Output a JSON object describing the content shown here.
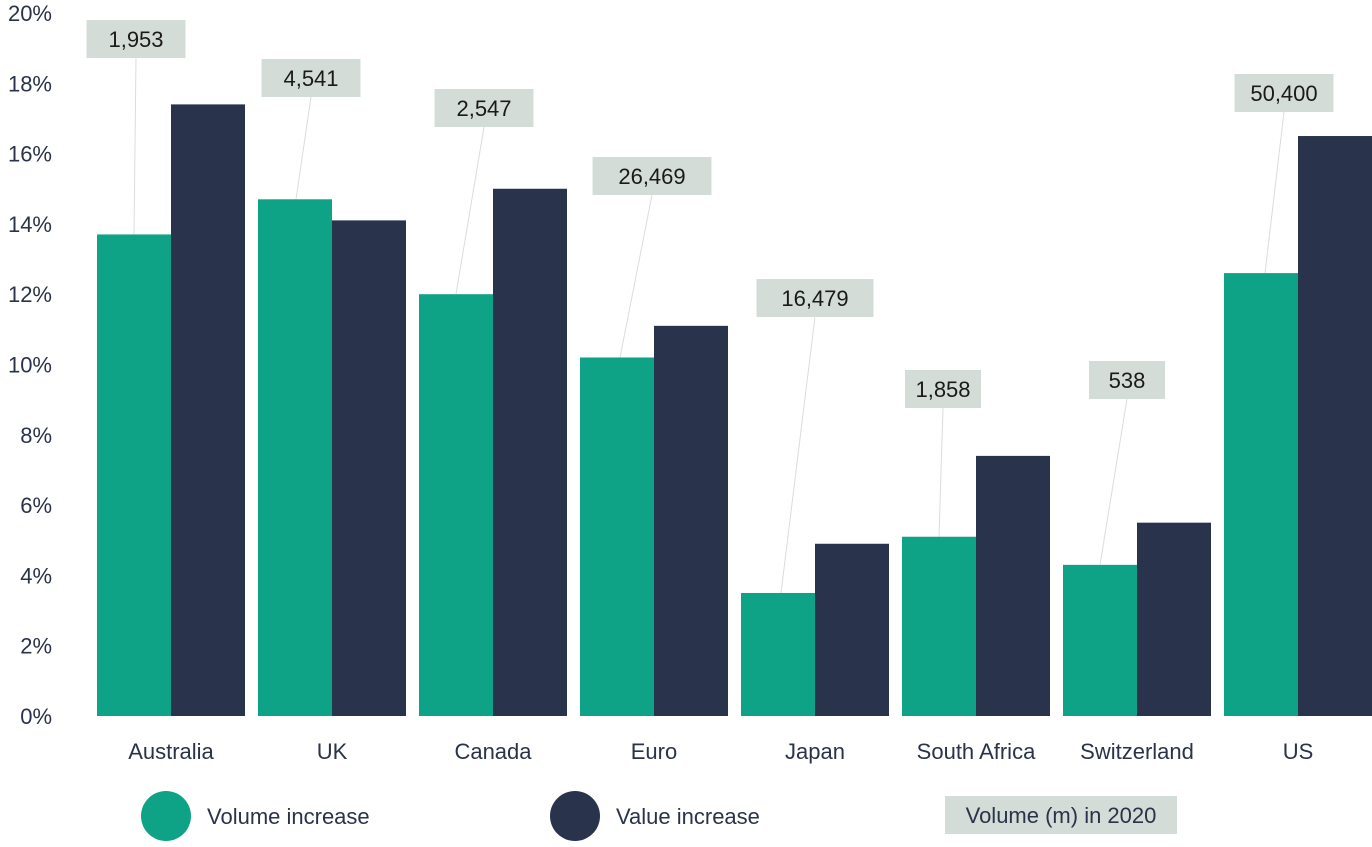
{
  "chart_data": {
    "type": "bar",
    "categories": [
      "Australia",
      "UK",
      "Canada",
      "Euro",
      "Japan",
      "South Africa",
      "Switzerland",
      "US"
    ],
    "series": [
      {
        "name": "Volume increase",
        "color": "#0ea386",
        "values": [
          13.7,
          14.7,
          12.0,
          10.2,
          3.5,
          5.1,
          4.3,
          12.6
        ]
      },
      {
        "name": "Value increase",
        "color": "#29344c",
        "values": [
          17.4,
          14.1,
          15.0,
          11.1,
          4.9,
          7.4,
          5.5,
          16.5
        ]
      }
    ],
    "annotations": {
      "title": "Volume (m) in 2020",
      "labels": [
        "1,953",
        "4,541",
        "2,547",
        "26,469",
        "16,479",
        "1,858",
        "538",
        "50,400"
      ],
      "label_bg": "#d4dcd8"
    },
    "yticks": [
      "0%",
      "2%",
      "4%",
      "6%",
      "8%",
      "10%",
      "12%",
      "14%",
      "16%",
      "18%",
      "20%"
    ],
    "ylim": [
      0,
      20
    ],
    "grid": false,
    "legend": "bottom"
  }
}
